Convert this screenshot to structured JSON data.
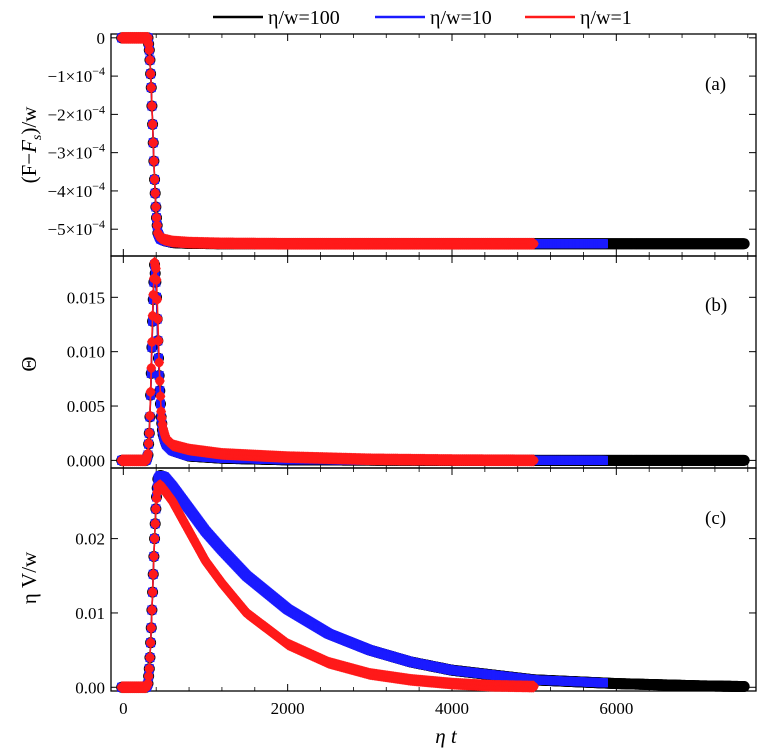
{
  "legend": [
    {
      "label": "η/w=100",
      "color": "#000000"
    },
    {
      "label": "η/w=10",
      "color": "#1a1aff"
    },
    {
      "label": "η/w=1",
      "color": "#ff1a1a"
    }
  ],
  "xlabel": "η t",
  "x_ticks": [
    "0",
    "2000",
    "4000",
    "6000"
  ],
  "chart_data": [
    {
      "type": "scatter",
      "panel": "(a)",
      "ylabel": "(F−F_s)/w",
      "ylabel_main": "(F−",
      "ylabel_sym": "F",
      "ylabel_sub": "s",
      "ylabel_tail": ")/w",
      "xlim": [
        -150,
        7700
      ],
      "ylim": [
        -0.00057,
        1e-05
      ],
      "y_ticks": [
        0,
        -0.0001,
        -0.0002,
        -0.0003,
        -0.0004,
        -0.0005
      ],
      "y_tick_labels": [
        "0",
        "−1×10",
        "−2×10",
        "−3×10",
        "−4×10",
        "−5×10"
      ],
      "y_tick_exp": "−4",
      "series": [
        {
          "name": "η/w=100",
          "x": [
            -20,
            300,
            320,
            340,
            360,
            380,
            400,
            420,
            450,
            500,
            600,
            800,
            1200,
            2000,
            4000,
            7560
          ],
          "y": [
            0,
            0,
            -4e-05,
            -0.00013,
            -0.00025,
            -0.00037,
            -0.00046,
            -0.00051,
            -0.000525,
            -0.00053,
            -0.000535,
            -0.000537,
            -0.000538,
            -0.000538,
            -0.000538,
            -0.000538
          ]
        },
        {
          "name": "η/w=10",
          "x": [
            -20,
            300,
            320,
            340,
            360,
            380,
            400,
            420,
            450,
            500,
            600,
            800,
            1200,
            2000,
            4000,
            5850
          ],
          "y": [
            0,
            0,
            -4e-05,
            -0.00013,
            -0.00025,
            -0.00037,
            -0.00046,
            -0.00051,
            -0.000525,
            -0.00053,
            -0.000535,
            -0.000537,
            -0.000538,
            -0.000538,
            -0.000538,
            -0.000538
          ]
        },
        {
          "name": "η/w=1",
          "x": [
            -20,
            300,
            320,
            340,
            360,
            380,
            400,
            420,
            450,
            500,
            600,
            800,
            1200,
            2000,
            4000,
            5000
          ],
          "y": [
            0,
            0,
            -4e-05,
            -0.00013,
            -0.00025,
            -0.00037,
            -0.00046,
            -0.00051,
            -0.000522,
            -0.000527,
            -0.000532,
            -0.000535,
            -0.000537,
            -0.000538,
            -0.000538,
            -0.000538
          ]
        }
      ]
    },
    {
      "type": "scatter",
      "panel": "(b)",
      "ylabel": "Θ",
      "xlim": [
        -150,
        7700
      ],
      "ylim": [
        -0.0007,
        0.0188
      ],
      "y_ticks": [
        0,
        0.005,
        0.01,
        0.015
      ],
      "y_tick_labels": [
        "0.000",
        "0.005",
        "0.010",
        "0.015"
      ],
      "series": [
        {
          "name": "η/w=100",
          "x": [
            -20,
            280,
            300,
            320,
            340,
            360,
            380,
            400,
            420,
            440,
            460,
            480,
            520,
            600,
            800,
            1200,
            2000,
            3000,
            4000,
            7560
          ],
          "y": [
            0,
            0,
            0.0005,
            0.003,
            0.008,
            0.014,
            0.018,
            0.016,
            0.011,
            0.007,
            0.004,
            0.0025,
            0.0015,
            0.0009,
            0.0004,
            0.0002,
            5e-05,
            2e-05,
            0,
            0
          ]
        },
        {
          "name": "η/w=10",
          "x": [
            -20,
            280,
            300,
            320,
            340,
            360,
            380,
            400,
            420,
            440,
            460,
            480,
            520,
            600,
            800,
            1200,
            2000,
            3000,
            4000,
            5850
          ],
          "y": [
            0,
            0,
            0.0005,
            0.003,
            0.008,
            0.014,
            0.018,
            0.016,
            0.011,
            0.007,
            0.004,
            0.0025,
            0.0015,
            0.0009,
            0.0004,
            0.0002,
            5e-05,
            2e-05,
            0,
            0
          ]
        },
        {
          "name": "η/w=1",
          "x": [
            -20,
            280,
            300,
            320,
            340,
            360,
            380,
            400,
            420,
            440,
            460,
            480,
            520,
            600,
            800,
            1200,
            2000,
            3000,
            4000,
            5000
          ],
          "y": [
            0,
            0,
            0.0006,
            0.003,
            0.0085,
            0.0145,
            0.0182,
            0.0175,
            0.013,
            0.008,
            0.0045,
            0.003,
            0.002,
            0.0014,
            0.001,
            0.0006,
            0.0003,
            0.0001,
            3e-05,
            0
          ]
        }
      ]
    },
    {
      "type": "scatter",
      "panel": "(c)",
      "ylabel": "η V/w",
      "xlim": [
        -150,
        7700
      ],
      "ylim": [
        -0.0005,
        0.0295
      ],
      "y_ticks": [
        0,
        0.01,
        0.02
      ],
      "y_tick_labels": [
        "0.00",
        "0.01",
        "0.02"
      ],
      "series": [
        {
          "name": "η/w=100",
          "x": [
            -20,
            280,
            300,
            320,
            340,
            360,
            380,
            400,
            420,
            450,
            500,
            600,
            800,
            1000,
            1200,
            1500,
            2000,
            2500,
            3000,
            3500,
            4000,
            5000,
            6000,
            7000,
            7560
          ],
          "y": [
            0,
            0,
            0.0005,
            0.003,
            0.008,
            0.014,
            0.02,
            0.025,
            0.028,
            0.0285,
            0.0283,
            0.027,
            0.024,
            0.021,
            0.0185,
            0.015,
            0.0105,
            0.0072,
            0.005,
            0.0034,
            0.0023,
            0.001,
            0.0005,
            0.0002,
            0.0001
          ]
        },
        {
          "name": "η/w=10",
          "x": [
            -20,
            280,
            300,
            320,
            340,
            360,
            380,
            400,
            420,
            450,
            500,
            600,
            800,
            1000,
            1200,
            1500,
            2000,
            2500,
            3000,
            3500,
            4000,
            5000,
            5850
          ],
          "y": [
            0,
            0,
            0.0005,
            0.003,
            0.008,
            0.014,
            0.02,
            0.025,
            0.028,
            0.0285,
            0.0283,
            0.027,
            0.024,
            0.021,
            0.0185,
            0.015,
            0.0105,
            0.0072,
            0.005,
            0.0034,
            0.0023,
            0.001,
            0.0006
          ]
        },
        {
          "name": "η/w=1",
          "x": [
            -20,
            280,
            300,
            320,
            340,
            360,
            380,
            400,
            420,
            450,
            500,
            600,
            800,
            1000,
            1200,
            1500,
            2000,
            2500,
            3000,
            3500,
            4000,
            4500,
            5000
          ],
          "y": [
            0,
            0,
            0.0005,
            0.003,
            0.008,
            0.014,
            0.02,
            0.025,
            0.027,
            0.0272,
            0.0265,
            0.025,
            0.021,
            0.017,
            0.014,
            0.01,
            0.0058,
            0.0033,
            0.0018,
            0.001,
            0.0005,
            0.0002,
            0.0001
          ]
        }
      ]
    }
  ]
}
